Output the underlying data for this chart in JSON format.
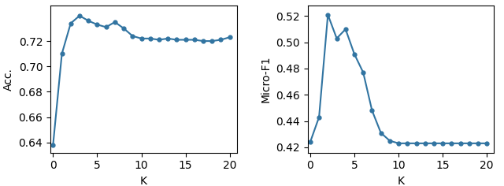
{
  "acc_x": [
    0,
    1,
    2,
    3,
    4,
    5,
    6,
    7,
    8,
    9,
    10,
    11,
    12,
    13,
    14,
    15,
    16,
    17,
    18,
    19,
    20
  ],
  "acc_y": [
    0.638,
    0.71,
    0.734,
    0.74,
    0.736,
    0.733,
    0.731,
    0.735,
    0.73,
    0.724,
    0.722,
    0.722,
    0.721,
    0.722,
    0.721,
    0.721,
    0.721,
    0.72,
    0.72,
    0.721,
    0.723
  ],
  "f1_x": [
    0,
    1,
    2,
    3,
    4,
    5,
    6,
    7,
    8,
    9,
    10,
    11,
    12,
    13,
    14,
    15,
    16,
    17,
    18,
    19,
    20
  ],
  "f1_y": [
    0.424,
    0.443,
    0.521,
    0.503,
    0.51,
    0.491,
    0.477,
    0.448,
    0.431,
    0.425,
    0.423,
    0.423,
    0.423,
    0.423,
    0.423,
    0.423,
    0.423,
    0.423,
    0.423,
    0.423,
    0.423
  ],
  "line_color": "#3174a1",
  "marker": "o",
  "markersize": 3.5,
  "linewidth": 1.5,
  "acc_ylabel": "Acc.",
  "f1_ylabel": "Micro-F1",
  "xlabel": "K",
  "acc_ylim": [
    0.632,
    0.748
  ],
  "f1_ylim": [
    0.416,
    0.528
  ],
  "acc_yticks": [
    0.64,
    0.66,
    0.68,
    0.7,
    0.72
  ],
  "f1_yticks": [
    0.42,
    0.44,
    0.46,
    0.48,
    0.5,
    0.52
  ],
  "xticks": [
    0,
    5,
    10,
    15,
    20
  ],
  "xlim": [
    -0.3,
    20.8
  ],
  "figsize": [
    6.4,
    2.36
  ],
  "dpi": 100
}
